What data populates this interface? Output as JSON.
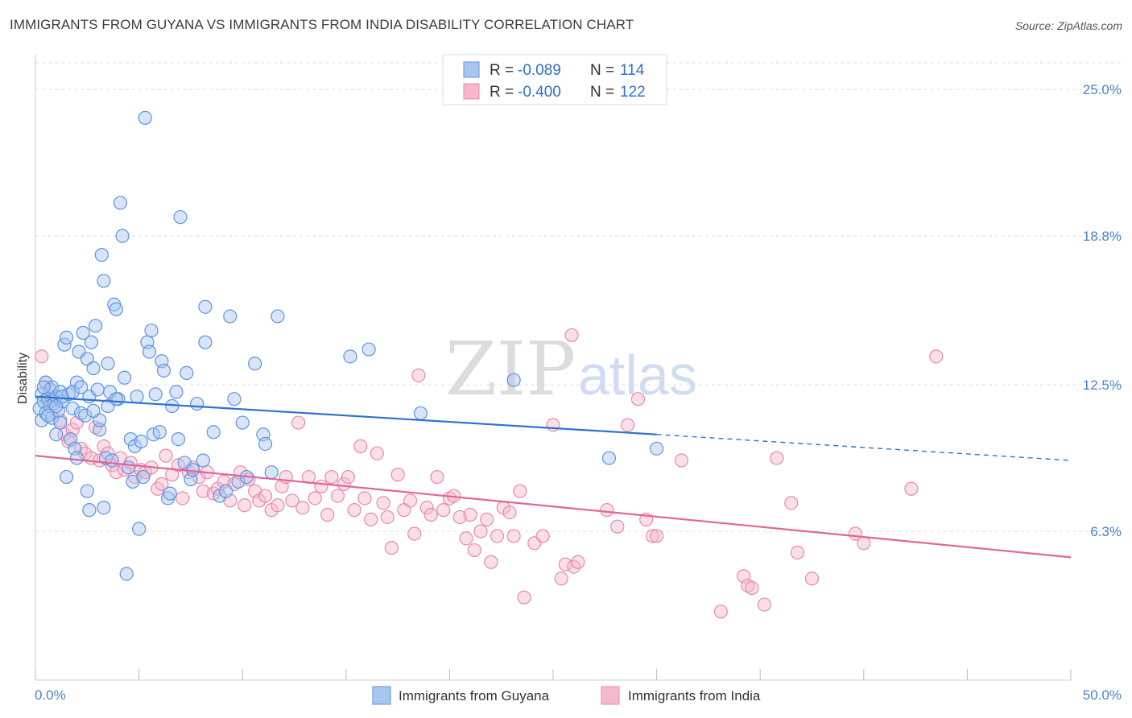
{
  "title": "IMMIGRANTS FROM GUYANA VS IMMIGRANTS FROM INDIA DISABILITY CORRELATION CHART",
  "source": "Source: ZipAtlas.com",
  "watermark": {
    "zip": "ZIP",
    "atlas": "atlas"
  },
  "colors": {
    "guyana_fill": "#a8c6f0",
    "guyana_stroke": "#5e93df",
    "guyana_line": "#2d72d2",
    "india_fill": "#f6b8cb",
    "india_stroke": "#e88aa8",
    "india_line": "#e2649a",
    "grid": "#dddddd",
    "tick_text": "#4a7fd4"
  },
  "legend": {
    "rows": [
      {
        "r_label": "R =",
        "r_value": "-0.089",
        "n_label": "N =",
        "n_value": "114"
      },
      {
        "r_label": "R =",
        "r_value": "-0.400",
        "n_label": "N =",
        "n_value": "122"
      }
    ]
  },
  "chart_data": {
    "type": "scatter",
    "title": "IMMIGRANTS FROM GUYANA VS IMMIGRANTS FROM INDIA DISABILITY CORRELATION CHART",
    "xlabel": "",
    "ylabel": "Disability",
    "xlim": [
      0,
      50
    ],
    "ylim": [
      0,
      26.3
    ],
    "x_tick_labels": [
      "0.0%",
      "50.0%"
    ],
    "y_ticks": [
      6.3,
      12.5,
      18.8,
      25.0
    ],
    "y_tick_labels": [
      "6.3%",
      "12.5%",
      "18.8%",
      "25.0%"
    ],
    "series": [
      {
        "name": "Immigrants from Guyana",
        "r": -0.089,
        "n": 114,
        "trend": {
          "x0": 0,
          "y0": 12.0,
          "x1": 30,
          "y1": 10.4,
          "dash_x1": 50,
          "dash_y1": 9.3
        },
        "points": [
          [
            0.2,
            11.5
          ],
          [
            0.3,
            12.1
          ],
          [
            0.3,
            11.0
          ],
          [
            0.4,
            11.8
          ],
          [
            0.5,
            12.6
          ],
          [
            0.5,
            11.3
          ],
          [
            0.6,
            11.9
          ],
          [
            0.7,
            12.3
          ],
          [
            0.7,
            11.6
          ],
          [
            0.8,
            11.1
          ],
          [
            0.8,
            12.4
          ],
          [
            0.9,
            11.7
          ],
          [
            1.0,
            10.4
          ],
          [
            1.0,
            12.0
          ],
          [
            1.1,
            11.4
          ],
          [
            1.2,
            10.9
          ],
          [
            1.2,
            12.2
          ],
          [
            1.3,
            11.8
          ],
          [
            1.4,
            14.2
          ],
          [
            1.5,
            14.5
          ],
          [
            1.5,
            8.6
          ],
          [
            1.6,
            12.1
          ],
          [
            1.7,
            10.2
          ],
          [
            1.8,
            11.5
          ],
          [
            1.9,
            9.8
          ],
          [
            2.0,
            12.6
          ],
          [
            2.0,
            9.4
          ],
          [
            2.1,
            13.9
          ],
          [
            2.2,
            11.3
          ],
          [
            2.3,
            14.7
          ],
          [
            2.4,
            11.2
          ],
          [
            2.5,
            13.6
          ],
          [
            2.5,
            8.0
          ],
          [
            2.6,
            12.0
          ],
          [
            2.6,
            7.2
          ],
          [
            2.7,
            14.3
          ],
          [
            2.8,
            13.2
          ],
          [
            2.9,
            15.0
          ],
          [
            3.0,
            12.3
          ],
          [
            3.1,
            10.6
          ],
          [
            3.1,
            11.0
          ],
          [
            3.2,
            18.0
          ],
          [
            3.3,
            16.9
          ],
          [
            3.3,
            7.3
          ],
          [
            3.4,
            9.4
          ],
          [
            3.5,
            13.4
          ],
          [
            3.6,
            12.2
          ],
          [
            3.7,
            9.3
          ],
          [
            3.8,
            15.9
          ],
          [
            3.9,
            15.7
          ],
          [
            4.0,
            11.9
          ],
          [
            4.1,
            20.2
          ],
          [
            4.2,
            18.8
          ],
          [
            4.3,
            12.8
          ],
          [
            4.4,
            4.5
          ],
          [
            4.5,
            9.0
          ],
          [
            4.6,
            10.2
          ],
          [
            4.7,
            8.4
          ],
          [
            4.8,
            9.9
          ],
          [
            4.9,
            12.0
          ],
          [
            5.0,
            6.4
          ],
          [
            5.1,
            10.1
          ],
          [
            5.2,
            8.6
          ],
          [
            5.3,
            23.8
          ],
          [
            5.4,
            14.3
          ],
          [
            5.5,
            13.9
          ],
          [
            5.6,
            14.8
          ],
          [
            5.7,
            10.4
          ],
          [
            5.8,
            12.1
          ],
          [
            6.0,
            10.5
          ],
          [
            6.1,
            13.5
          ],
          [
            6.2,
            13.1
          ],
          [
            6.4,
            7.7
          ],
          [
            6.5,
            7.9
          ],
          [
            6.6,
            11.6
          ],
          [
            6.8,
            12.2
          ],
          [
            6.9,
            10.2
          ],
          [
            7.0,
            19.6
          ],
          [
            7.2,
            9.2
          ],
          [
            7.3,
            13.0
          ],
          [
            7.5,
            8.5
          ],
          [
            7.6,
            8.9
          ],
          [
            7.8,
            11.7
          ],
          [
            8.1,
            9.3
          ],
          [
            8.2,
            14.3
          ],
          [
            8.2,
            15.8
          ],
          [
            8.6,
            10.5
          ],
          [
            8.9,
            7.8
          ],
          [
            9.2,
            8.0
          ],
          [
            9.4,
            15.4
          ],
          [
            9.6,
            11.9
          ],
          [
            9.8,
            8.4
          ],
          [
            10.0,
            10.9
          ],
          [
            10.2,
            8.6
          ],
          [
            10.6,
            13.4
          ],
          [
            11.0,
            10.4
          ],
          [
            11.1,
            10.0
          ],
          [
            11.4,
            8.8
          ],
          [
            11.7,
            15.4
          ],
          [
            15.2,
            13.7
          ],
          [
            16.1,
            14.0
          ],
          [
            18.6,
            11.3
          ],
          [
            23.1,
            12.7
          ],
          [
            27.7,
            9.4
          ],
          [
            30.0,
            9.8
          ],
          [
            0.4,
            12.4
          ],
          [
            0.6,
            11.2
          ],
          [
            1.0,
            11.6
          ],
          [
            1.3,
            12.0
          ],
          [
            1.8,
            12.2
          ],
          [
            2.2,
            12.4
          ],
          [
            2.8,
            11.4
          ],
          [
            3.5,
            11.6
          ],
          [
            3.9,
            11.9
          ]
        ]
      },
      {
        "name": "Immigrants from India",
        "r": -0.4,
        "n": 122,
        "trend": {
          "x0": 0,
          "y0": 9.5,
          "x1": 50,
          "y1": 5.2
        },
        "points": [
          [
            0.3,
            13.7
          ],
          [
            0.5,
            12.6
          ],
          [
            0.8,
            11.9
          ],
          [
            1.2,
            11.0
          ],
          [
            1.4,
            10.4
          ],
          [
            1.6,
            10.1
          ],
          [
            1.8,
            10.6
          ],
          [
            2.0,
            10.9
          ],
          [
            2.2,
            9.8
          ],
          [
            2.4,
            9.6
          ],
          [
            2.7,
            9.4
          ],
          [
            2.9,
            10.7
          ],
          [
            3.1,
            9.3
          ],
          [
            3.3,
            9.9
          ],
          [
            3.5,
            9.6
          ],
          [
            3.7,
            9.1
          ],
          [
            3.9,
            8.8
          ],
          [
            4.1,
            9.4
          ],
          [
            4.3,
            8.9
          ],
          [
            4.6,
            9.2
          ],
          [
            4.8,
            8.6
          ],
          [
            5.1,
            8.9
          ],
          [
            5.3,
            8.8
          ],
          [
            5.6,
            9.0
          ],
          [
            5.9,
            8.1
          ],
          [
            6.1,
            8.3
          ],
          [
            6.3,
            9.5
          ],
          [
            6.6,
            8.7
          ],
          [
            6.9,
            9.1
          ],
          [
            7.1,
            7.7
          ],
          [
            7.4,
            8.8
          ],
          [
            7.6,
            9.0
          ],
          [
            7.9,
            8.6
          ],
          [
            8.1,
            8.0
          ],
          [
            8.3,
            8.8
          ],
          [
            8.6,
            7.9
          ],
          [
            8.8,
            8.1
          ],
          [
            9.1,
            8.4
          ],
          [
            9.4,
            7.6
          ],
          [
            9.6,
            8.3
          ],
          [
            9.9,
            8.8
          ],
          [
            10.1,
            7.4
          ],
          [
            10.3,
            8.5
          ],
          [
            10.6,
            8.0
          ],
          [
            10.8,
            7.6
          ],
          [
            11.1,
            7.8
          ],
          [
            11.4,
            7.2
          ],
          [
            11.7,
            7.4
          ],
          [
            11.9,
            8.2
          ],
          [
            12.1,
            8.6
          ],
          [
            12.4,
            7.6
          ],
          [
            12.7,
            10.9
          ],
          [
            12.9,
            7.3
          ],
          [
            13.2,
            8.6
          ],
          [
            13.5,
            7.7
          ],
          [
            13.8,
            8.2
          ],
          [
            14.1,
            7.0
          ],
          [
            14.3,
            8.6
          ],
          [
            14.6,
            7.8
          ],
          [
            14.9,
            8.3
          ],
          [
            15.1,
            8.6
          ],
          [
            15.4,
            7.2
          ],
          [
            15.7,
            9.9
          ],
          [
            15.9,
            7.7
          ],
          [
            16.2,
            6.8
          ],
          [
            16.5,
            9.6
          ],
          [
            16.8,
            7.5
          ],
          [
            17.0,
            6.9
          ],
          [
            17.2,
            5.6
          ],
          [
            17.5,
            8.7
          ],
          [
            17.8,
            7.2
          ],
          [
            18.1,
            7.6
          ],
          [
            18.3,
            6.2
          ],
          [
            18.5,
            12.9
          ],
          [
            18.9,
            7.3
          ],
          [
            19.1,
            7.0
          ],
          [
            19.4,
            8.6
          ],
          [
            19.7,
            7.2
          ],
          [
            20.0,
            7.7
          ],
          [
            20.2,
            7.8
          ],
          [
            20.5,
            6.9
          ],
          [
            20.8,
            6.0
          ],
          [
            21.0,
            7.0
          ],
          [
            21.2,
            5.5
          ],
          [
            21.5,
            6.3
          ],
          [
            21.8,
            6.8
          ],
          [
            22.0,
            5.0
          ],
          [
            22.3,
            6.1
          ],
          [
            22.6,
            7.3
          ],
          [
            22.9,
            7.1
          ],
          [
            23.1,
            6.1
          ],
          [
            23.4,
            8.0
          ],
          [
            23.6,
            3.5
          ],
          [
            24.1,
            5.8
          ],
          [
            24.5,
            6.1
          ],
          [
            25.0,
            10.8
          ],
          [
            25.4,
            4.3
          ],
          [
            25.6,
            4.9
          ],
          [
            25.9,
            14.6
          ],
          [
            26.0,
            4.8
          ],
          [
            26.2,
            5.0
          ],
          [
            27.6,
            7.2
          ],
          [
            28.1,
            6.5
          ],
          [
            28.6,
            10.8
          ],
          [
            29.1,
            11.9
          ],
          [
            29.5,
            6.8
          ],
          [
            29.8,
            6.1
          ],
          [
            30.0,
            6.1
          ],
          [
            31.2,
            9.3
          ],
          [
            33.1,
            2.9
          ],
          [
            34.2,
            4.4
          ],
          [
            34.4,
            4.0
          ],
          [
            34.6,
            3.9
          ],
          [
            35.2,
            3.2
          ],
          [
            35.8,
            9.4
          ],
          [
            36.5,
            7.5
          ],
          [
            36.8,
            5.4
          ],
          [
            37.5,
            4.3
          ],
          [
            39.6,
            6.2
          ],
          [
            40.0,
            5.8
          ],
          [
            42.3,
            8.1
          ],
          [
            43.5,
            13.7
          ]
        ]
      }
    ]
  },
  "bottom_legend": {
    "items": [
      {
        "label": "Immigrants from Guyana"
      },
      {
        "label": "Immigrants from India"
      }
    ]
  },
  "axes": {
    "x_left_label": "0.0%",
    "x_right_label": "50.0%",
    "y_title": "Disability"
  }
}
